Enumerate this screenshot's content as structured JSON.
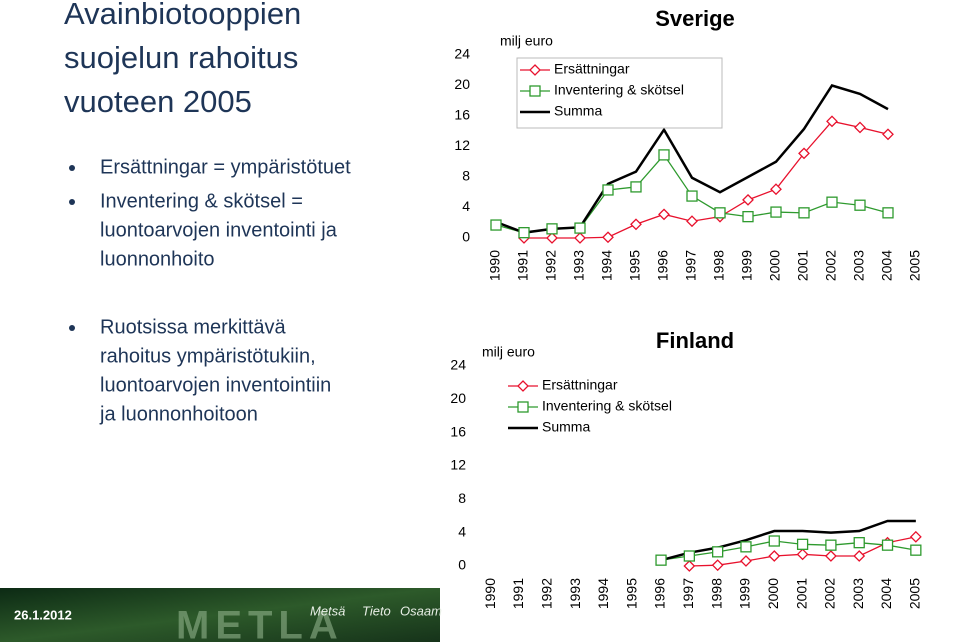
{
  "slide": {
    "title": [
      "Avainbiotooppien",
      "suojelun rahoitus",
      "vuoteen 2005"
    ],
    "bullets": [
      [
        "Ersättningar = ympäristötuet"
      ],
      [
        "Inventering  & skötsel =",
        "luontoarvojen inventointi ja",
        "luonnonhoito"
      ],
      [
        "Ruotsissa merkittävä",
        "rahoitus ympäristötukiin,",
        "luontoarvojen inventointiin",
        "ja luonnonhoitoon"
      ]
    ],
    "footer": {
      "date": "26.1.2012",
      "logo": "METLA",
      "tagline": [
        "Metsä",
        "Tieto",
        "Osaam"
      ]
    }
  },
  "chart_data": [
    {
      "type": "line",
      "title": "Sverige",
      "ylabel": "milj euro",
      "categories": [
        "1990",
        "1991",
        "1992",
        "1993",
        "1994",
        "1995",
        "1996",
        "1997",
        "1998",
        "1999",
        "2000",
        "2001",
        "2002",
        "2003",
        "2004",
        "2005"
      ],
      "ylim": [
        0,
        24
      ],
      "yticks": [
        0,
        4,
        8,
        12,
        16,
        20,
        24
      ],
      "series": [
        {
          "name": "Ersättningar",
          "color": "#e8112d",
          "marker": "diamond",
          "values": [
            null,
            0,
            0,
            0,
            0.1,
            1.8,
            3.1,
            2.2,
            2.8,
            5.0,
            6.4,
            11.1,
            15.3,
            14.5,
            13.6,
            null
          ]
        },
        {
          "name": "Inventering & skötsel",
          "color": "#2e9a2e",
          "marker": "square",
          "values": [
            1.7,
            0.7,
            1.2,
            1.3,
            6.3,
            6.7,
            10.9,
            5.5,
            3.3,
            2.8,
            3.4,
            3.3,
            4.7,
            4.3,
            3.3,
            null
          ]
        },
        {
          "name": "Summa",
          "color": "#000000",
          "marker": "none",
          "values": [
            2.1,
            0.7,
            1.2,
            1.4,
            7.1,
            8.7,
            14.2,
            7.9,
            6.0,
            8.0,
            10.0,
            14.3,
            20.0,
            18.9,
            16.9,
            null
          ]
        }
      ]
    },
    {
      "type": "line",
      "title": "Finland",
      "ylabel": "milj euro",
      "categories": [
        "1990",
        "1991",
        "1992",
        "1993",
        "1994",
        "1995",
        "1996",
        "1997",
        "1998",
        "1999",
        "2000",
        "2001",
        "2002",
        "2003",
        "2004",
        "2005"
      ],
      "ylim": [
        0,
        24
      ],
      "yticks": [
        0,
        4,
        8,
        12,
        16,
        20,
        24
      ],
      "series": [
        {
          "name": "Ersättningar",
          "color": "#e8112d",
          "marker": "diamond",
          "values": [
            null,
            null,
            null,
            null,
            null,
            null,
            null,
            0,
            0.1,
            0.6,
            1.2,
            1.4,
            1.2,
            1.2,
            2.8,
            3.5
          ]
        },
        {
          "name": "Inventering & skötsel",
          "color": "#2e9a2e",
          "marker": "square",
          "values": [
            null,
            null,
            null,
            null,
            null,
            null,
            0.7,
            1.2,
            1.7,
            2.3,
            3.0,
            2.6,
            2.5,
            2.8,
            2.5,
            1.9
          ]
        },
        {
          "name": "Summa",
          "color": "#000000",
          "marker": "none",
          "values": [
            null,
            null,
            null,
            null,
            null,
            null,
            0.7,
            1.6,
            2.2,
            3.1,
            4.2,
            4.2,
            4.0,
            4.2,
            5.4,
            5.4
          ]
        }
      ]
    }
  ]
}
